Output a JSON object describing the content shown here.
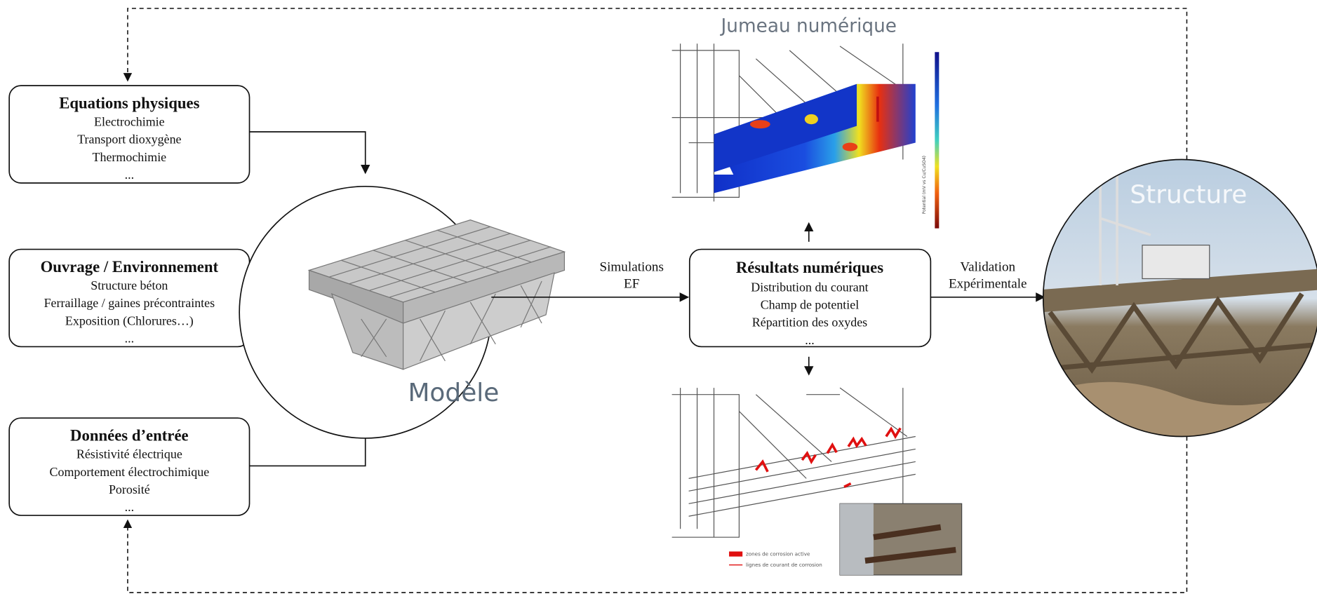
{
  "title": "Jumeau numérique",
  "boxes": [
    {
      "title": "Equations physiques",
      "lines": [
        "Electrochimie",
        "Transport dioxygène",
        "Thermochimie",
        "..."
      ]
    },
    {
      "title": "Ouvrage / Environnement",
      "lines": [
        "Structure béton",
        "Ferraillage / gaines précontraintes",
        "Exposition (Chlorures…)",
        "..."
      ]
    },
    {
      "title": "Données d’entrée",
      "lines": [
        "Résistivité électrique",
        "Comportement électrochimique",
        "Porosité",
        "..."
      ]
    }
  ],
  "model": {
    "label": "Modèle"
  },
  "results": {
    "title": "Résultats numériques",
    "lines": [
      "Distribution du courant",
      "Champ de potentiel",
      "Répartition des oxydes",
      "..."
    ]
  },
  "structure": {
    "label": "Structure"
  },
  "edges": [
    {
      "lines": [
        "Simulations",
        "EF"
      ]
    },
    {
      "lines": [
        "Validation",
        "Expérimentale"
      ]
    }
  ],
  "colorbar_label": "Potential (mV vs Cu/CuSO4)",
  "legend": [
    "zones de corrosion active",
    "lignes de courant de corrosion"
  ]
}
